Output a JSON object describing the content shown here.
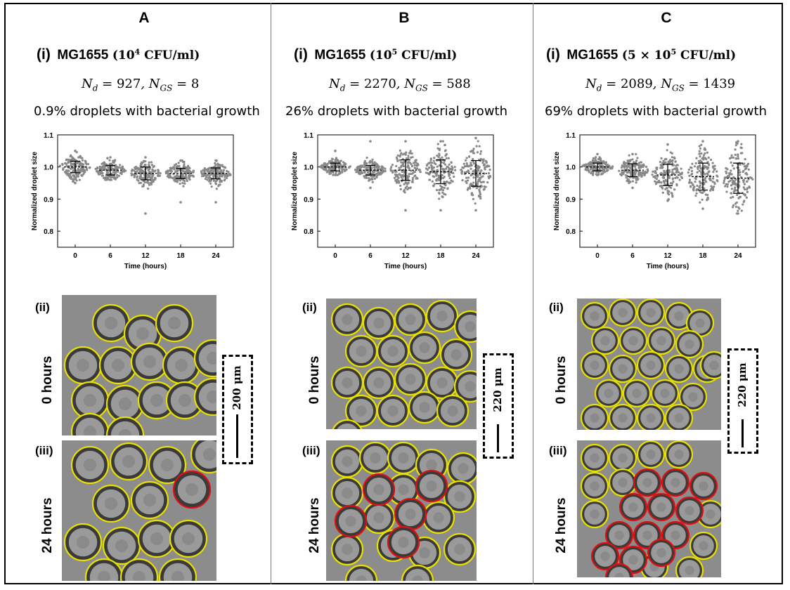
{
  "panels": [
    {
      "letter": "A",
      "roman": "(i)",
      "strain": "MG1655",
      "conc_base": "10",
      "conc_exp": "4",
      "conc_unit": "CFU/ml",
      "nd_value": "927",
      "ngs_value": "8",
      "growth_text": "0.9% droplets with bacterial growth",
      "row2_label": "(ii)",
      "row2_time": "0 hours",
      "row3_label": "(iii)",
      "row3_time": "24 hours",
      "scale_text": "200 μm"
    },
    {
      "letter": "B",
      "roman": "(i)",
      "strain": "MG1655",
      "conc_base": "10",
      "conc_exp": "5",
      "conc_unit": "CFU/ml",
      "nd_value": "2270",
      "ngs_value": "588",
      "growth_text": "26% droplets with bacterial growth",
      "row2_label": "(ii)",
      "row2_time": "0 hours",
      "row3_label": "(iii)",
      "row3_time": "24 hours",
      "scale_text": "220 μm"
    },
    {
      "letter": "C",
      "roman": "(i)",
      "strain": "MG1655",
      "conc_base": "5 × 10",
      "conc_exp": "5",
      "conc_unit": "CFU/ml",
      "nd_value": "2089",
      "ngs_value": "1439",
      "growth_text": "69% droplets with bacterial growth",
      "row2_label": "(ii)",
      "row2_time": "0 hours",
      "row3_label": "(iii)",
      "row3_time": "24 hours",
      "scale_text": "220 μm"
    }
  ],
  "symbols": {
    "nd": "N",
    "nd_sub": "d",
    "ngs_sub": "GS",
    "eq": " = "
  },
  "colors": {
    "points": "#888888",
    "empty_droplet": "#e8e000",
    "growth_droplet": "#dd1111",
    "micro_bg": "#8c8c8c"
  },
  "chart_data": [
    {
      "type": "scatter",
      "title": "",
      "xlabel": "Time (hours)",
      "ylabel": "Normalized droplet size",
      "categories": [
        "0",
        "6",
        "12",
        "18",
        "24"
      ],
      "ylim": [
        0.75,
        1.1
      ],
      "yticks": [
        0.8,
        0.9,
        1.0,
        1.1
      ],
      "ytick_labels": [
        "0.8",
        "0.9",
        "1.0",
        "1.1"
      ],
      "series": [
        {
          "mean": [
            1.0,
            0.99,
            0.98,
            0.98,
            0.98
          ],
          "sd": [
            0.018,
            0.015,
            0.02,
            0.016,
            0.017
          ],
          "min": [
            0.95,
            0.96,
            0.855,
            0.89,
            0.89
          ],
          "max": [
            1.05,
            1.03,
            1.03,
            1.02,
            1.02
          ]
        }
      ]
    },
    {
      "type": "scatter",
      "title": "",
      "xlabel": "Time (hours)",
      "ylabel": "Normalized droplet size",
      "categories": [
        "0",
        "6",
        "12",
        "18",
        "24"
      ],
      "ylim": [
        0.75,
        1.1
      ],
      "yticks": [
        0.8,
        0.9,
        1.0,
        1.1
      ],
      "ytick_labels": [
        "0.8",
        "0.9",
        "1.0",
        "1.1"
      ],
      "series": [
        {
          "mean": [
            1.0,
            0.99,
            0.99,
            0.985,
            0.98
          ],
          "sd": [
            0.012,
            0.015,
            0.032,
            0.037,
            0.04
          ],
          "min": [
            0.975,
            0.935,
            0.865,
            0.865,
            0.865
          ],
          "max": [
            1.05,
            1.08,
            1.08,
            1.08,
            1.09
          ]
        }
      ]
    },
    {
      "type": "scatter",
      "title": "",
      "xlabel": "Time (hours)",
      "ylabel": "Normalized droplet size",
      "categories": [
        "0",
        "6",
        "12",
        "18",
        "24"
      ],
      "ylim": [
        0.75,
        1.1
      ],
      "yticks": [
        0.8,
        0.9,
        1.0,
        1.1
      ],
      "ytick_labels": [
        "0.8",
        "0.9",
        "1.0",
        "1.1"
      ],
      "series": [
        {
          "mean": [
            1.0,
            0.99,
            0.975,
            0.97,
            0.965
          ],
          "sd": [
            0.012,
            0.02,
            0.033,
            0.042,
            0.047
          ],
          "min": [
            0.975,
            0.935,
            0.895,
            0.87,
            0.855
          ],
          "max": [
            1.04,
            1.04,
            1.07,
            1.08,
            1.08
          ]
        }
      ]
    }
  ],
  "micrographs": [
    {
      "top_circles": [
        [
          [
            70,
            40
          ],
          [
            115,
            55
          ],
          [
            160,
            40
          ],
          [
            30,
            100
          ],
          [
            80,
            100
          ],
          [
            125,
            95
          ],
          [
            170,
            100
          ],
          [
            215,
            90
          ],
          [
            40,
            150
          ],
          [
            90,
            155
          ],
          [
            135,
            150
          ],
          [
            175,
            150
          ],
          [
            215,
            145
          ],
          [
            40,
            195
          ],
          [
            90,
            200
          ]
        ],
        []
      ],
      "bottom_circles": [
        [
          [
            40,
            35
          ],
          [
            95,
            30
          ],
          [
            150,
            35
          ],
          [
            210,
            20
          ],
          [
            70,
            90
          ],
          [
            125,
            85
          ],
          [
            30,
            145
          ],
          [
            85,
            150
          ],
          [
            135,
            140
          ],
          [
            180,
            140
          ],
          [
            60,
            195
          ],
          [
            110,
            195
          ],
          [
            165,
            195
          ]
        ],
        [
          [
            185,
            70
          ]
        ]
      ]
    },
    {
      "top_circles": [
        [
          [
            30,
            30
          ],
          [
            75,
            35
          ],
          [
            120,
            30
          ],
          [
            165,
            25
          ],
          [
            205,
            40
          ],
          [
            50,
            75
          ],
          [
            95,
            75
          ],
          [
            140,
            70
          ],
          [
            185,
            80
          ],
          [
            30,
            120
          ],
          [
            75,
            120
          ],
          [
            120,
            115
          ],
          [
            165,
            120
          ],
          [
            205,
            125
          ],
          [
            50,
            160
          ],
          [
            95,
            160
          ],
          [
            140,
            155
          ],
          [
            180,
            160
          ],
          [
            30,
            195
          ]
        ],
        []
      ],
      "bottom_circles": [
        [
          [
            30,
            30
          ],
          [
            70,
            25
          ],
          [
            110,
            25
          ],
          [
            150,
            35
          ],
          [
            195,
            40
          ],
          [
            30,
            75
          ],
          [
            110,
            70
          ],
          [
            190,
            80
          ],
          [
            75,
            110
          ],
          [
            160,
            110
          ],
          [
            30,
            155
          ],
          [
            95,
            150
          ],
          [
            140,
            160
          ],
          [
            190,
            155
          ],
          [
            50,
            200
          ],
          [
            130,
            200
          ]
        ],
        [
          [
            75,
            70
          ],
          [
            150,
            65
          ],
          [
            120,
            105
          ],
          [
            35,
            115
          ],
          [
            110,
            145
          ]
        ]
      ]
    },
    {
      "top_circles": [
        [
          [
            25,
            25
          ],
          [
            65,
            20
          ],
          [
            105,
            20
          ],
          [
            145,
            25
          ],
          [
            175,
            35
          ],
          [
            40,
            60
          ],
          [
            80,
            60
          ],
          [
            120,
            60
          ],
          [
            160,
            65
          ],
          [
            25,
            95
          ],
          [
            65,
            100
          ],
          [
            105,
            95
          ],
          [
            145,
            100
          ],
          [
            185,
            100
          ],
          [
            45,
            135
          ],
          [
            85,
            135
          ],
          [
            125,
            135
          ],
          [
            165,
            140
          ],
          [
            195,
            95
          ],
          [
            25,
            170
          ],
          [
            65,
            170
          ],
          [
            105,
            170
          ],
          [
            145,
            170
          ]
        ],
        []
      ],
      "bottom_circles": [
        [
          [
            25,
            25
          ],
          [
            65,
            25
          ],
          [
            105,
            20
          ],
          [
            145,
            20
          ],
          [
            25,
            65
          ],
          [
            65,
            60
          ],
          [
            25,
            105
          ],
          [
            190,
            105
          ],
          [
            180,
            150
          ],
          [
            160,
            185
          ],
          [
            110,
            180
          ]
        ],
        [
          [
            100,
            60
          ],
          [
            140,
            60
          ],
          [
            180,
            65
          ],
          [
            80,
            95
          ],
          [
            120,
            95
          ],
          [
            160,
            100
          ],
          [
            60,
            135
          ],
          [
            100,
            135
          ],
          [
            140,
            135
          ],
          [
            40,
            165
          ],
          [
            80,
            170
          ],
          [
            120,
            160
          ],
          [
            60,
            195
          ]
        ]
      ]
    }
  ]
}
